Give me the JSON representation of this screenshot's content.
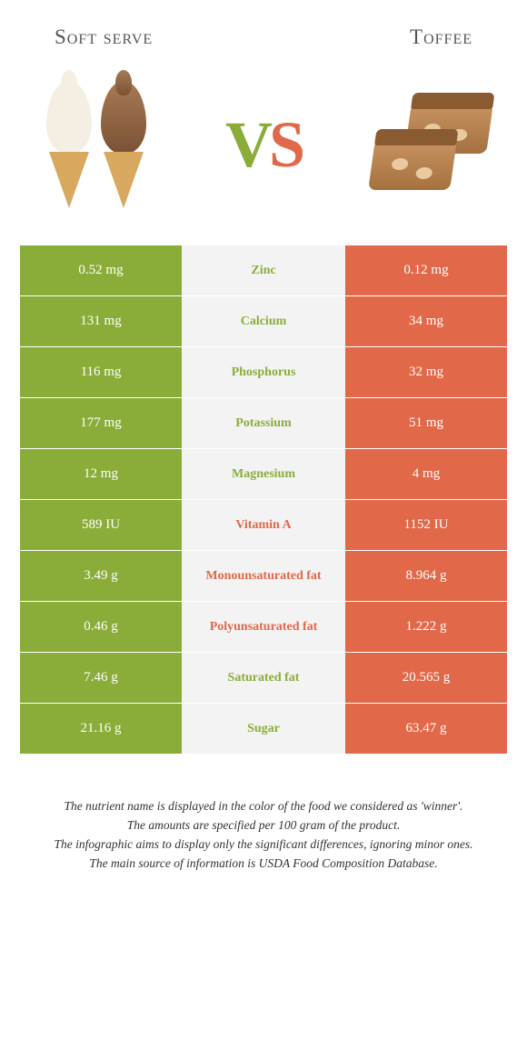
{
  "titles": {
    "left": "Soft serve",
    "right": "Toffee"
  },
  "vs": {
    "v": "V",
    "s": "S"
  },
  "colors": {
    "left": "#8aad3a",
    "right": "#e2684a",
    "mid_bg": "#f3f3f3"
  },
  "rows": [
    {
      "left": "0.52 mg",
      "name": "Zinc",
      "winner": "left",
      "right": "0.12 mg"
    },
    {
      "left": "131 mg",
      "name": "Calcium",
      "winner": "left",
      "right": "34 mg"
    },
    {
      "left": "116 mg",
      "name": "Phosphorus",
      "winner": "left",
      "right": "32 mg"
    },
    {
      "left": "177 mg",
      "name": "Potassium",
      "winner": "left",
      "right": "51 mg"
    },
    {
      "left": "12 mg",
      "name": "Magnesium",
      "winner": "left",
      "right": "4 mg"
    },
    {
      "left": "589 IU",
      "name": "Vitamin A",
      "winner": "right",
      "right": "1152 IU"
    },
    {
      "left": "3.49 g",
      "name": "Monounsaturated fat",
      "winner": "right",
      "right": "8.964 g"
    },
    {
      "left": "0.46 g",
      "name": "Polyunsaturated fat",
      "winner": "right",
      "right": "1.222 g"
    },
    {
      "left": "7.46 g",
      "name": "Saturated fat",
      "winner": "left",
      "right": "20.565 g"
    },
    {
      "left": "21.16 g",
      "name": "Sugar",
      "winner": "left",
      "right": "63.47 g"
    }
  ],
  "footer": {
    "l1": "The nutrient name is displayed in the color of the food we considered as 'winner'.",
    "l2": "The amounts are specified per 100 gram of the product.",
    "l3": "The infographic aims to display only the significant differences, ignoring minor ones.",
    "l4": "The main source of information is USDA Food Composition Database."
  }
}
